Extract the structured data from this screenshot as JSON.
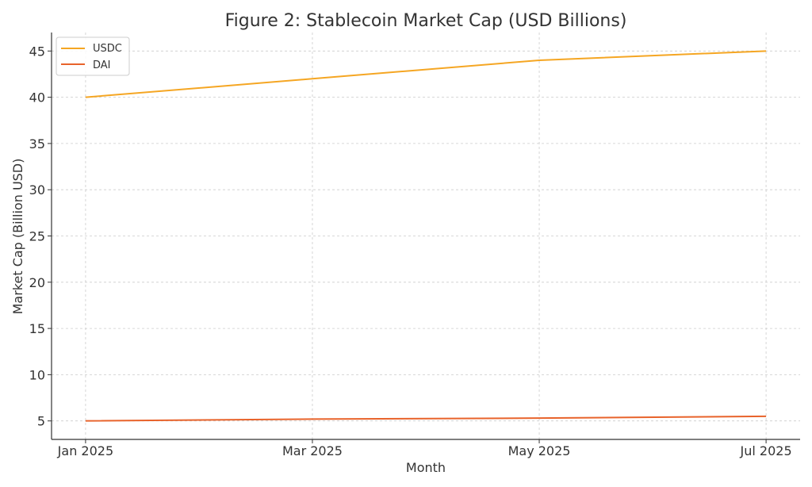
{
  "chart_data": {
    "type": "line",
    "title": "Figure 2: Stablecoin Market Cap (USD Billions)",
    "xlabel": "Month",
    "ylabel": "Market Cap (Billion USD)",
    "categories": [
      "Jan 2025",
      "Mar 2025",
      "May 2025",
      "Jul 2025"
    ],
    "x_months": [
      0,
      2,
      4,
      6
    ],
    "xlim": [
      -0.3,
      6.3
    ],
    "ylim": [
      3,
      47
    ],
    "yticks": [
      5,
      10,
      15,
      20,
      25,
      30,
      35,
      40,
      45
    ],
    "grid": true,
    "legend_position": "top-left",
    "series": [
      {
        "name": "USDC",
        "color": "#f5a623",
        "values": [
          40,
          42,
          44,
          45
        ]
      },
      {
        "name": "DAI",
        "color": "#e8632b",
        "values": [
          5.0,
          5.2,
          5.3,
          5.5
        ]
      }
    ]
  }
}
